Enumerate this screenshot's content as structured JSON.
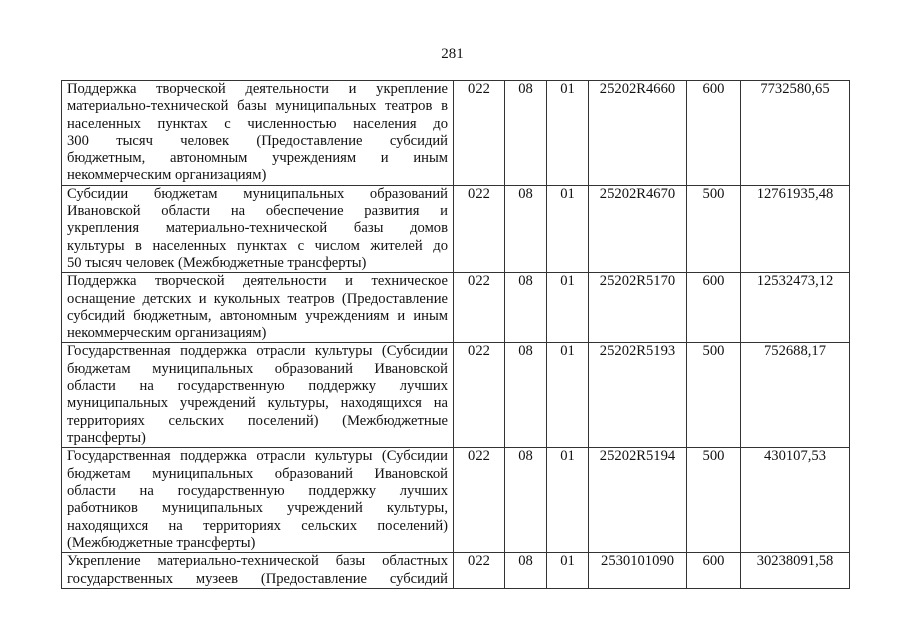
{
  "page_number": "281",
  "rows": [
    {
      "lines": [
        "Поддержка творческой деятельности и укрепление",
        "материально-технической базы муниципальных театров в",
        "населенных пунктах с численностью населения до",
        "300 тысяч человек (Предоставление субсидий",
        "бюджетным, автономным учреждениям и иным",
        "некоммерческим организациям)"
      ],
      "ved": "022",
      "rz": "08",
      "pr": "01",
      "csr": "25202R4660",
      "vr": "600",
      "sum": "7732580,65"
    },
    {
      "lines": [
        "Субсидии бюджетам муниципальных образований",
        "Ивановской области на обеспечение развития и",
        "укрепления материально-технической базы домов",
        "культуры в населенных пунктах с числом жителей до",
        "50 тысяч человек (Межбюджетные трансферты)"
      ],
      "ved": "022",
      "rz": "08",
      "pr": "01",
      "csr": "25202R4670",
      "vr": "500",
      "sum": "12761935,48"
    },
    {
      "lines": [
        "Поддержка творческой деятельности и техническое",
        "оснащение детских и кукольных театров (Предоставление",
        "субсидий бюджетным, автономным учреждениям и иным",
        "некоммерческим организациям)"
      ],
      "ved": "022",
      "rz": "08",
      "pr": "01",
      "csr": "25202R5170",
      "vr": "600",
      "sum": "12532473,12"
    },
    {
      "lines": [
        "Государственная поддержка отрасли культуры (Субсидии",
        "бюджетам муниципальных образований Ивановской",
        "области на государственную поддержку лучших",
        "муниципальных учреждений культуры, находящихся на",
        "территориях сельских поселений) (Межбюджетные",
        "трансферты)"
      ],
      "ved": "022",
      "rz": "08",
      "pr": "01",
      "csr": "25202R5193",
      "vr": "500",
      "sum": "752688,17"
    },
    {
      "lines": [
        "Государственная поддержка отрасли культуры (Субсидии",
        "бюджетам муниципальных образований Ивановской",
        "области на государственную поддержку лучших",
        "работников муниципальных учреждений культуры,",
        "находящихся на территориях сельских поселений)",
        "(Межбюджетные трансферты)"
      ],
      "ved": "022",
      "rz": "08",
      "pr": "01",
      "csr": "25202R5194",
      "vr": "500",
      "sum": "430107,53"
    },
    {
      "lines": [
        "Укрепление материально-технической базы областных",
        "государственных музеев (Предоставление субсидий"
      ],
      "ved": "022",
      "rz": "08",
      "pr": "01",
      "csr": "2530101090",
      "vr": "600",
      "sum": "30238091,58",
      "continues": true
    }
  ]
}
